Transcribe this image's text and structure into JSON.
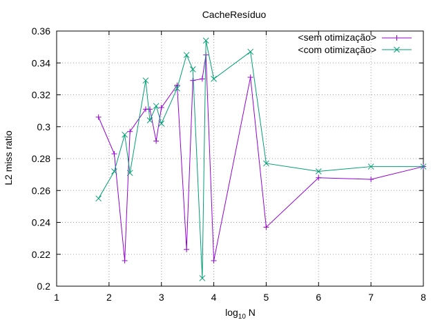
{
  "chart_data": {
    "type": "line",
    "title": "CacheResíduo",
    "xlabel_main": "log",
    "xlabel_sub": "10",
    "xlabel_tail": " N",
    "ylabel": "L2 miss ratio",
    "xlim": [
      1,
      8
    ],
    "ylim": [
      0.2,
      0.36
    ],
    "x_ticks": [
      1,
      2,
      3,
      4,
      5,
      6,
      7,
      8
    ],
    "y_ticks": [
      0.2,
      0.22,
      0.24,
      0.26,
      0.28,
      0.3,
      0.32,
      0.34,
      0.36
    ],
    "x_tick_labels": [
      "1",
      "2",
      "3",
      "4",
      "5",
      "6",
      "7",
      "8"
    ],
    "y_tick_labels": [
      "0.2",
      "0.22",
      "0.24",
      "0.26",
      "0.28",
      "0.3",
      "0.32",
      "0.34",
      "0.36"
    ],
    "grid": true,
    "legend_position": "top-right",
    "series": [
      {
        "name": "<sem otimização>",
        "color": "#9400d3",
        "marker": "plus",
        "points": [
          [
            1.8,
            0.306
          ],
          [
            2.1,
            0.283
          ],
          [
            2.3,
            0.216
          ],
          [
            2.4,
            0.297
          ],
          [
            2.7,
            0.311
          ],
          [
            2.78,
            0.311
          ],
          [
            2.9,
            0.291
          ],
          [
            3.0,
            0.312
          ],
          [
            3.3,
            0.326
          ],
          [
            3.48,
            0.223
          ],
          [
            3.6,
            0.329
          ],
          [
            3.78,
            0.33
          ],
          [
            3.85,
            0.345
          ],
          [
            4.0,
            0.216
          ],
          [
            4.7,
            0.331
          ],
          [
            5.0,
            0.237
          ],
          [
            6.0,
            0.268
          ],
          [
            7.0,
            0.267
          ],
          [
            8.0,
            0.275
          ]
        ]
      },
      {
        "name": "<com otimização>",
        "color": "#009e73",
        "marker": "cross",
        "points": [
          [
            1.8,
            0.255
          ],
          [
            2.1,
            0.272
          ],
          [
            2.3,
            0.295
          ],
          [
            2.4,
            0.271
          ],
          [
            2.7,
            0.329
          ],
          [
            2.78,
            0.304
          ],
          [
            2.9,
            0.313
          ],
          [
            3.0,
            0.302
          ],
          [
            3.3,
            0.324
          ],
          [
            3.48,
            0.345
          ],
          [
            3.6,
            0.336
          ],
          [
            3.78,
            0.205
          ],
          [
            3.85,
            0.354
          ],
          [
            4.0,
            0.33
          ],
          [
            4.7,
            0.347
          ],
          [
            5.0,
            0.277
          ],
          [
            6.0,
            0.272
          ],
          [
            7.0,
            0.275
          ],
          [
            8.0,
            0.275
          ]
        ]
      }
    ]
  }
}
